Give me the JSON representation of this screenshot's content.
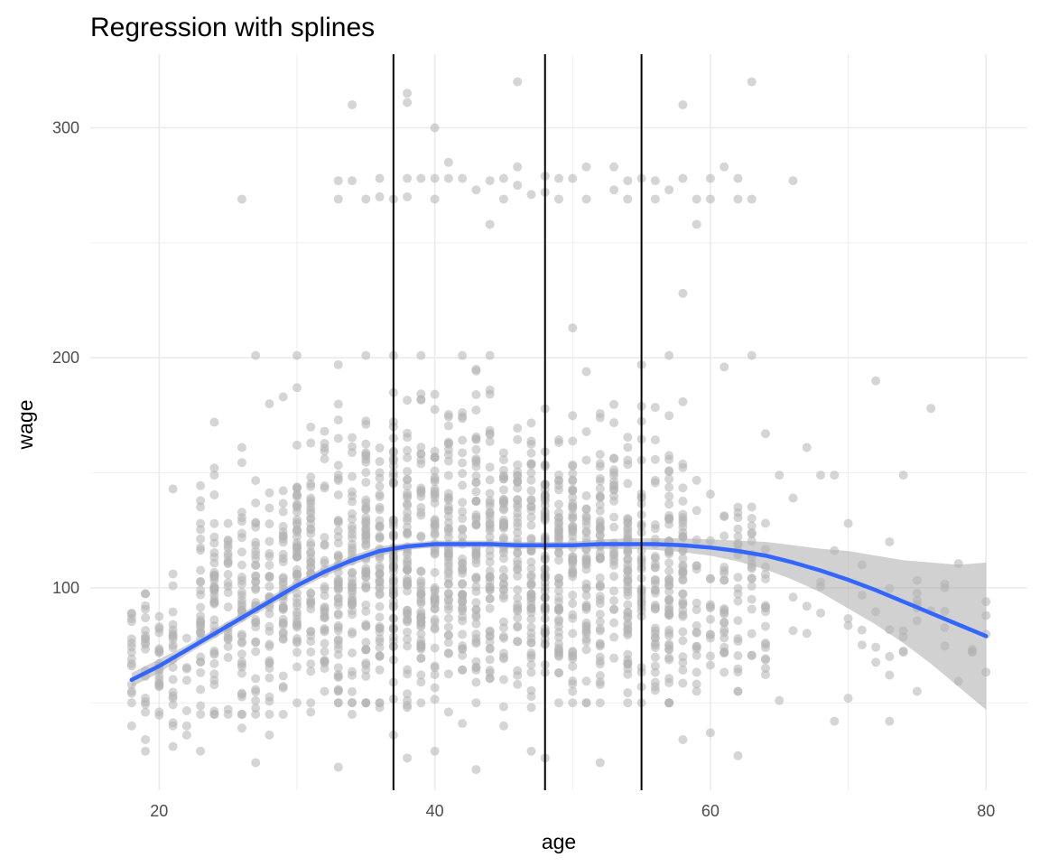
{
  "chart_data": {
    "type": "scatter",
    "title": "Regression with splines",
    "xlabel": "age",
    "ylabel": "wage",
    "xlim": [
      15,
      83
    ],
    "ylim": [
      12,
      332
    ],
    "x_ticks": [
      20,
      40,
      60,
      80
    ],
    "y_ticks": [
      100,
      200,
      300
    ],
    "grid": true,
    "legend": "none",
    "knots": [
      37,
      48,
      55
    ],
    "colors": {
      "points": "#b3b3b3",
      "fit_line": "#3366ff",
      "confidence_band": "#999999",
      "knot_lines": "#000000",
      "grid": "#ebebeb"
    },
    "fit": {
      "x": [
        18,
        20,
        22,
        24,
        26,
        28,
        30,
        32,
        34,
        36,
        38,
        40,
        42,
        44,
        46,
        48,
        50,
        52,
        54,
        56,
        58,
        60,
        62,
        64,
        66,
        68,
        70,
        72,
        74,
        76,
        78,
        80
      ],
      "y": [
        60,
        66,
        73,
        80,
        87,
        94,
        101,
        107,
        112,
        116,
        118,
        119,
        119,
        119,
        118.5,
        118.5,
        118.5,
        119,
        119,
        119,
        118.5,
        117.5,
        116,
        114,
        111,
        107.5,
        103.5,
        99,
        94,
        89,
        84,
        79
      ],
      "lower": [
        57,
        63,
        71,
        78,
        85,
        92,
        99,
        105,
        110,
        114,
        116.5,
        117.5,
        117.5,
        117.5,
        117,
        117,
        117,
        117,
        117,
        116.5,
        115.5,
        114,
        111.5,
        108,
        103.5,
        98,
        91,
        84,
        76,
        67,
        57,
        47
      ],
      "upper": [
        63,
        69,
        75,
        82,
        89,
        96,
        103,
        109,
        114,
        118,
        119.5,
        120.5,
        120.5,
        120.5,
        120,
        120,
        120,
        121,
        121.5,
        121.5,
        121.5,
        121,
        120.5,
        120,
        118.5,
        117,
        116,
        114,
        112,
        111,
        110,
        111
      ]
    },
    "points": {
      "outliers": [
        [
          18,
          76
        ],
        [
          18,
          72
        ],
        [
          18,
          66
        ],
        [
          18,
          55
        ],
        [
          18,
          50
        ],
        [
          19,
          34
        ],
        [
          19,
          29
        ],
        [
          19,
          64
        ],
        [
          20,
          83
        ],
        [
          20,
          46
        ],
        [
          21,
          143
        ],
        [
          21,
          106
        ],
        [
          21,
          31
        ],
        [
          22,
          40
        ],
        [
          22,
          36
        ],
        [
          23,
          128
        ],
        [
          23,
          29
        ],
        [
          24,
          172
        ],
        [
          24,
          149
        ],
        [
          24,
          45
        ],
        [
          25,
          128
        ],
        [
          26,
          269
        ],
        [
          26,
          161
        ],
        [
          26,
          39
        ],
        [
          27,
          201
        ],
        [
          27,
          24
        ],
        [
          28,
          180
        ],
        [
          28,
          36
        ],
        [
          29,
          183
        ],
        [
          30,
          201
        ],
        [
          30,
          187
        ],
        [
          31,
          46
        ],
        [
          32,
          55
        ],
        [
          33,
          277
        ],
        [
          33,
          269
        ],
        [
          33,
          22
        ],
        [
          33,
          197
        ],
        [
          34,
          310
        ],
        [
          34,
          277
        ],
        [
          34,
          45
        ],
        [
          35,
          269
        ],
        [
          35,
          201
        ],
        [
          36,
          278
        ],
        [
          36,
          270
        ],
        [
          36,
          48
        ],
        [
          37,
          269
        ],
        [
          37,
          201
        ],
        [
          37,
          36
        ],
        [
          38,
          315
        ],
        [
          38,
          311
        ],
        [
          38,
          278
        ],
        [
          38,
          270
        ],
        [
          38,
          26
        ],
        [
          38,
          49
        ],
        [
          39,
          278
        ],
        [
          39,
          201
        ],
        [
          39,
          50
        ],
        [
          40,
          300
        ],
        [
          40,
          278
        ],
        [
          40,
          269
        ],
        [
          40,
          29
        ],
        [
          41,
          285
        ],
        [
          41,
          278
        ],
        [
          41,
          46
        ],
        [
          42,
          278
        ],
        [
          42,
          201
        ],
        [
          42,
          41
        ],
        [
          43,
          273
        ],
        [
          43,
          21
        ],
        [
          43,
          50
        ],
        [
          44,
          277
        ],
        [
          44,
          258
        ],
        [
          44,
          201
        ],
        [
          45,
          278
        ],
        [
          45,
          269
        ],
        [
          45,
          40
        ],
        [
          46,
          320
        ],
        [
          46,
          283
        ],
        [
          46,
          275
        ],
        [
          47,
          271
        ],
        [
          47,
          29
        ],
        [
          48,
          279
        ],
        [
          48,
          272
        ],
        [
          48,
          26
        ],
        [
          49,
          278
        ],
        [
          49,
          269
        ],
        [
          50,
          278
        ],
        [
          50,
          213
        ],
        [
          50,
          55
        ],
        [
          51,
          283
        ],
        [
          51,
          269
        ],
        [
          51,
          194
        ],
        [
          52,
          24
        ],
        [
          53,
          283
        ],
        [
          53,
          273
        ],
        [
          54,
          277
        ],
        [
          54,
          269
        ],
        [
          55,
          278
        ],
        [
          55,
          197
        ],
        [
          56,
          277
        ],
        [
          56,
          269
        ],
        [
          57,
          273
        ],
        [
          57,
          201
        ],
        [
          58,
          310
        ],
        [
          58,
          278
        ],
        [
          58,
          228
        ],
        [
          58,
          34
        ],
        [
          59,
          269
        ],
        [
          59,
          258
        ],
        [
          60,
          278
        ],
        [
          60,
          269
        ],
        [
          60,
          37
        ],
        [
          61,
          283
        ],
        [
          61,
          196
        ],
        [
          62,
          278
        ],
        [
          62,
          269
        ],
        [
          62,
          27
        ],
        [
          63,
          320
        ],
        [
          63,
          269
        ],
        [
          63,
          201
        ],
        [
          64,
          167
        ],
        [
          65,
          149
        ],
        [
          65,
          51
        ],
        [
          66,
          277
        ],
        [
          66,
          139
        ],
        [
          67,
          161
        ],
        [
          67,
          92
        ],
        [
          68,
          149
        ],
        [
          69,
          149
        ],
        [
          69,
          42
        ],
        [
          70,
          128
        ],
        [
          70,
          52
        ],
        [
          71,
          110
        ],
        [
          72,
          190
        ],
        [
          73,
          120
        ],
        [
          73,
          42
        ],
        [
          74,
          149
        ],
        [
          74,
          72
        ],
        [
          75,
          55
        ],
        [
          76,
          178
        ],
        [
          77,
          100
        ],
        [
          80,
          94
        ],
        [
          80,
          88
        ]
      ],
      "dense_ranges": [
        {
          "age_from": 18,
          "age_to": 22,
          "wage_min": 40,
          "wage_max": 110,
          "count": 70
        },
        {
          "age_from": 23,
          "age_to": 29,
          "wage_min": 45,
          "wage_max": 160,
          "count": 230
        },
        {
          "age_from": 30,
          "age_to": 36,
          "wage_min": 50,
          "wage_max": 180,
          "count": 330
        },
        {
          "age_from": 37,
          "age_to": 48,
          "wage_min": 48,
          "wage_max": 195,
          "count": 620
        },
        {
          "age_from": 49,
          "age_to": 58,
          "wage_min": 50,
          "wage_max": 185,
          "count": 450
        },
        {
          "age_from": 59,
          "age_to": 64,
          "wage_min": 55,
          "wage_max": 160,
          "count": 110
        },
        {
          "age_from": 65,
          "age_to": 80,
          "wage_min": 55,
          "wage_max": 130,
          "count": 40
        }
      ]
    }
  }
}
